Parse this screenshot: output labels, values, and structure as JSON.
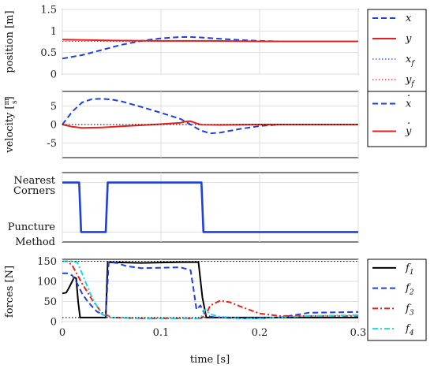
{
  "colors": {
    "blue": "#1f3fe0",
    "red": "#e8201c",
    "black": "#000000",
    "cyan": "#17d8e6",
    "grid": "#dddddd"
  },
  "chart_data": [
    {
      "type": "line",
      "ylabel": "position [m]",
      "xlim": [
        0,
        0.3
      ],
      "ylim": [
        0,
        1.5
      ],
      "yticks": [
        "0",
        "0.5",
        "1",
        "1.5"
      ],
      "series": [
        {
          "name": "x",
          "color": "#1f3fe0",
          "dash": "dashed",
          "x": [
            0,
            0.02,
            0.04,
            0.06,
            0.08,
            0.1,
            0.12,
            0.13,
            0.14,
            0.16,
            0.18,
            0.2,
            0.22,
            0.25,
            0.3
          ],
          "y": [
            0.36,
            0.44,
            0.56,
            0.68,
            0.77,
            0.83,
            0.86,
            0.86,
            0.85,
            0.82,
            0.79,
            0.77,
            0.76,
            0.76,
            0.76
          ]
        },
        {
          "name": "y",
          "color": "#e8201c",
          "dash": "solid",
          "x": [
            0,
            0.05,
            0.1,
            0.15,
            0.2,
            0.3
          ],
          "y": [
            0.8,
            0.78,
            0.77,
            0.77,
            0.76,
            0.76
          ]
        },
        {
          "name": "x_f",
          "color": "#1f3fe0",
          "dash": "dotted",
          "x": [
            0,
            0.3
          ],
          "y": [
            0.76,
            0.76
          ]
        },
        {
          "name": "y_f",
          "color": "#e8201c",
          "dash": "dotted",
          "x": [
            0,
            0.3
          ],
          "y": [
            0.76,
            0.76
          ]
        }
      ],
      "legend": [
        {
          "base": "x",
          "sub": "",
          "dot": false
        },
        {
          "base": "y",
          "sub": "",
          "dot": false
        },
        {
          "base": "x",
          "sub": "f",
          "dot": false
        },
        {
          "base": "y",
          "sub": "f",
          "dot": false
        }
      ]
    },
    {
      "type": "line",
      "ylabel": "velocity [m/s]",
      "xlim": [
        0,
        0.3
      ],
      "ylim": [
        -9,
        9
      ],
      "yticks": [
        "-5",
        "0",
        "5"
      ],
      "ytickvals": [
        -5,
        0,
        5
      ],
      "series": [
        {
          "name": "x_dot",
          "color": "#1f3fe0",
          "dash": "dashed",
          "x": [
            0,
            0.01,
            0.02,
            0.03,
            0.04,
            0.05,
            0.06,
            0.08,
            0.1,
            0.12,
            0.13,
            0.14,
            0.15,
            0.16,
            0.18,
            0.2,
            0.22,
            0.25,
            0.3
          ],
          "y": [
            0,
            3.5,
            6,
            6.9,
            7.0,
            6.8,
            6.3,
            4.8,
            3.2,
            1.5,
            0,
            -1.6,
            -2.4,
            -2.2,
            -1.2,
            -0.4,
            0,
            0,
            0
          ]
        },
        {
          "name": "y_dot",
          "color": "#e8201c",
          "dash": "solid",
          "x": [
            0,
            0.01,
            0.02,
            0.04,
            0.06,
            0.08,
            0.1,
            0.12,
            0.125,
            0.13,
            0.135,
            0.14,
            0.16,
            0.2,
            0.3
          ],
          "y": [
            0,
            -0.6,
            -0.9,
            -0.8,
            -0.5,
            -0.2,
            0.1,
            0.5,
            0.8,
            0.9,
            0.4,
            0,
            -0.1,
            0,
            0
          ]
        },
        {
          "name": "ref",
          "color": "#000000",
          "dash": "dotted",
          "x": [
            0,
            0.3
          ],
          "y": [
            0,
            0
          ]
        }
      ],
      "legend": [
        {
          "base": "x",
          "sub": "",
          "dot": true
        },
        {
          "base": "y",
          "sub": "",
          "dot": true
        }
      ]
    },
    {
      "type": "line",
      "ylabel_top": [
        "Nearest",
        "Corners"
      ],
      "ylabel_bottom": [
        "Puncture",
        "Method"
      ],
      "xlim": [
        0,
        0.3
      ],
      "ylim": [
        -0.2,
        1.2
      ],
      "series": [
        {
          "name": "mode",
          "color": "#1f3fe0",
          "dash": "solid",
          "x": [
            0,
            0.017,
            0.019,
            0.044,
            0.046,
            0.141,
            0.143,
            0.3
          ],
          "y": [
            1,
            1,
            0,
            0,
            1,
            1,
            0,
            0
          ]
        }
      ]
    },
    {
      "type": "line",
      "ylabel": "forces [N]",
      "xlabel": "time [s]",
      "xlim": [
        0,
        0.3
      ],
      "ylim": [
        0,
        155
      ],
      "yticks": [
        "0",
        "50",
        "100",
        "150"
      ],
      "xticks": [
        "0",
        "0.1",
        "0.2",
        "0.3"
      ],
      "series": [
        {
          "name": "f_1",
          "color": "#000000",
          "dash": "solid",
          "x": [
            0,
            0.004,
            0.008,
            0.012,
            0.014,
            0.016,
            0.018,
            0.044,
            0.046,
            0.08,
            0.1,
            0.12,
            0.138,
            0.142,
            0.146,
            0.2,
            0.3
          ],
          "y": [
            70,
            72,
            90,
            110,
            108,
            50,
            10,
            10,
            148,
            146,
            147,
            148,
            148,
            60,
            10,
            10,
            10
          ]
        },
        {
          "name": "f_2",
          "color": "#1f3fe0",
          "dash": "dashed",
          "x": [
            0,
            0.005,
            0.01,
            0.015,
            0.02,
            0.025,
            0.03,
            0.035,
            0.04,
            0.044,
            0.047,
            0.055,
            0.065,
            0.08,
            0.1,
            0.12,
            0.13,
            0.133,
            0.136,
            0.14,
            0.144,
            0.15,
            0.16,
            0.18,
            0.2,
            0.22,
            0.25,
            0.3
          ],
          "y": [
            120,
            120,
            115,
            95,
            70,
            52,
            38,
            25,
            18,
            15,
            148,
            146,
            138,
            133,
            134,
            135,
            128,
            80,
            30,
            40,
            20,
            12,
            10,
            8,
            8,
            10,
            22,
            24
          ]
        },
        {
          "name": "f_3",
          "color": "#e8201c",
          "dash": "dashdot",
          "x": [
            0,
            0.005,
            0.01,
            0.02,
            0.03,
            0.04,
            0.05,
            0.08,
            0.12,
            0.14,
            0.145,
            0.15,
            0.16,
            0.17,
            0.18,
            0.2,
            0.22,
            0.25,
            0.3
          ],
          "y": [
            150,
            150,
            140,
            95,
            55,
            22,
            10,
            8,
            8,
            8,
            15,
            40,
            52,
            48,
            38,
            20,
            14,
            14,
            14
          ]
        },
        {
          "name": "f_4",
          "color": "#17d8e6",
          "dash": "dashdot",
          "x": [
            0,
            0.005,
            0.01,
            0.015,
            0.02,
            0.03,
            0.04,
            0.05,
            0.08,
            0.12,
            0.14,
            0.145,
            0.15,
            0.16,
            0.18,
            0.2,
            0.25,
            0.3
          ],
          "y": [
            150,
            150,
            150,
            148,
            120,
            60,
            18,
            10,
            8,
            8,
            8,
            30,
            18,
            12,
            8,
            8,
            14,
            16
          ]
        },
        {
          "name": "upper",
          "color": "#000000",
          "dash": "dotted",
          "x": [
            0,
            0.3
          ],
          "y": [
            150,
            150
          ]
        },
        {
          "name": "lower",
          "color": "#000000",
          "dash": "dotted",
          "x": [
            0,
            0.3
          ],
          "y": [
            10,
            10
          ]
        }
      ],
      "legend": [
        {
          "base": "f",
          "sub": "1",
          "dot": false
        },
        {
          "base": "f",
          "sub": "2",
          "dot": false
        },
        {
          "base": "f",
          "sub": "3",
          "dot": false
        },
        {
          "base": "f",
          "sub": "4",
          "dot": false
        }
      ]
    }
  ]
}
